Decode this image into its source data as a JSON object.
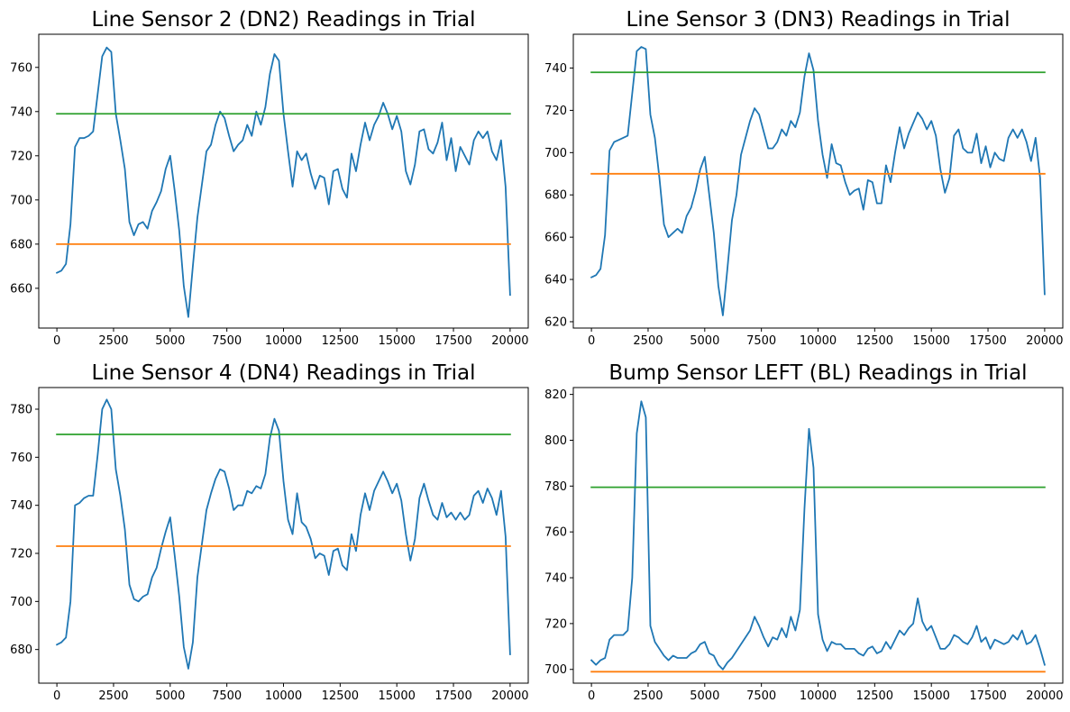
{
  "chart_data": [
    {
      "type": "line",
      "title": "Line Sensor 2 (DN2) Readings in Trial",
      "xlim": [
        -800,
        20800
      ],
      "ylim": [
        642,
        775
      ],
      "xticks": [
        0,
        2500,
        5000,
        7500,
        10000,
        12500,
        15000,
        17500,
        20000
      ],
      "yticks": [
        660,
        680,
        700,
        720,
        740,
        760
      ],
      "series": [
        {
          "color": "#1f77b4",
          "x": [
            0,
            200,
            400,
            600,
            800,
            1000,
            1200,
            1400,
            1600,
            1800,
            2000,
            2200,
            2400,
            2600,
            2800,
            3000,
            3200,
            3400,
            3600,
            3800,
            4000,
            4200,
            4400,
            4600,
            4800,
            5000,
            5200,
            5400,
            5600,
            5800,
            6000,
            6200,
            6400,
            6600,
            6800,
            7000,
            7200,
            7400,
            7600,
            7800,
            8000,
            8200,
            8400,
            8600,
            8800,
            9000,
            9200,
            9400,
            9600,
            9800,
            10000,
            10200,
            10400,
            10600,
            10800,
            11000,
            11200,
            11400,
            11600,
            11800,
            12000,
            12200,
            12400,
            12600,
            12800,
            13000,
            13200,
            13400,
            13600,
            13800,
            14000,
            14200,
            14400,
            14600,
            14800,
            15000,
            15200,
            15400,
            15600,
            15800,
            16000,
            16200,
            16400,
            16600,
            16800,
            17000,
            17200,
            17400,
            17600,
            17800,
            18000,
            18200,
            18400,
            18600,
            18800,
            19000,
            19200,
            19400,
            19600,
            19800,
            20000
          ],
          "y": [
            667,
            668,
            671,
            689,
            724,
            728,
            728,
            729,
            731,
            748,
            765,
            769,
            767,
            739,
            727,
            714,
            690,
            684,
            689,
            690,
            687,
            695,
            699,
            704,
            714,
            720,
            704,
            686,
            661,
            647,
            670,
            692,
            707,
            722,
            725,
            734,
            740,
            737,
            729,
            722,
            725,
            727,
            734,
            729,
            740,
            734,
            742,
            757,
            766,
            763,
            739,
            722,
            706,
            722,
            718,
            721,
            712,
            705,
            711,
            710,
            698,
            713,
            714,
            705,
            701,
            721,
            713,
            725,
            735,
            727,
            734,
            738,
            744,
            739,
            732,
            738,
            731,
            713,
            707,
            716,
            731,
            732,
            723,
            721,
            726,
            735,
            718,
            728,
            713,
            724,
            720,
            716,
            727,
            731,
            728,
            731,
            722,
            718,
            727,
            706,
            657
          ]
        },
        {
          "color": "#ff7f0e",
          "x": [
            0,
            20000
          ],
          "y": [
            680,
            680
          ]
        },
        {
          "color": "#2ca02c",
          "x": [
            0,
            20000
          ],
          "y": [
            739,
            739
          ]
        }
      ]
    },
    {
      "type": "line",
      "title": "Line Sensor 3 (DN3) Readings in Trial",
      "xlim": [
        -800,
        20800
      ],
      "ylim": [
        617,
        756
      ],
      "xticks": [
        0,
        2500,
        5000,
        7500,
        10000,
        12500,
        15000,
        17500,
        20000
      ],
      "yticks": [
        620,
        640,
        660,
        680,
        700,
        720,
        740
      ],
      "series": [
        {
          "color": "#1f77b4",
          "x": [
            0,
            200,
            400,
            600,
            800,
            1000,
            1200,
            1400,
            1600,
            1800,
            2000,
            2200,
            2400,
            2600,
            2800,
            3000,
            3200,
            3400,
            3600,
            3800,
            4000,
            4200,
            4400,
            4600,
            4800,
            5000,
            5200,
            5400,
            5600,
            5800,
            6000,
            6200,
            6400,
            6600,
            6800,
            7000,
            7200,
            7400,
            7600,
            7800,
            8000,
            8200,
            8400,
            8600,
            8800,
            9000,
            9200,
            9400,
            9600,
            9800,
            10000,
            10200,
            10400,
            10600,
            10800,
            11000,
            11200,
            11400,
            11600,
            11800,
            12000,
            12200,
            12400,
            12600,
            12800,
            13000,
            13200,
            13400,
            13600,
            13800,
            14000,
            14200,
            14400,
            14600,
            14800,
            15000,
            15200,
            15400,
            15600,
            15800,
            16000,
            16200,
            16400,
            16600,
            16800,
            17000,
            17200,
            17400,
            17600,
            17800,
            18000,
            18200,
            18400,
            18600,
            18800,
            19000,
            19200,
            19400,
            19600,
            19800,
            20000
          ],
          "y": [
            641,
            642,
            645,
            661,
            701,
            705,
            706,
            707,
            708,
            728,
            748,
            750,
            749,
            718,
            707,
            688,
            666,
            660,
            662,
            664,
            662,
            670,
            674,
            682,
            692,
            698,
            680,
            662,
            637,
            623,
            645,
            668,
            680,
            699,
            707,
            715,
            721,
            718,
            710,
            702,
            702,
            705,
            711,
            708,
            715,
            712,
            719,
            736,
            747,
            739,
            715,
            699,
            688,
            704,
            695,
            694,
            686,
            680,
            682,
            683,
            673,
            687,
            686,
            676,
            676,
            694,
            686,
            700,
            712,
            702,
            709,
            714,
            719,
            716,
            711,
            715,
            708,
            692,
            681,
            688,
            708,
            711,
            702,
            700,
            700,
            709,
            695,
            703,
            693,
            700,
            697,
            696,
            707,
            711,
            707,
            711,
            705,
            696,
            707,
            688,
            633
          ]
        },
        {
          "color": "#ff7f0e",
          "x": [
            0,
            20000
          ],
          "y": [
            690,
            690
          ]
        },
        {
          "color": "#2ca02c",
          "x": [
            0,
            20000
          ],
          "y": [
            738,
            738
          ]
        }
      ]
    },
    {
      "type": "line",
      "title": "Line Sensor 4 (DN4) Readings in Trial",
      "xlim": [
        -800,
        20800
      ],
      "ylim": [
        666,
        789
      ],
      "xticks": [
        0,
        2500,
        5000,
        7500,
        10000,
        12500,
        15000,
        17500,
        20000
      ],
      "yticks": [
        680,
        700,
        720,
        740,
        760,
        780
      ],
      "series": [
        {
          "color": "#1f77b4",
          "x": [
            0,
            200,
            400,
            600,
            800,
            1000,
            1200,
            1400,
            1600,
            1800,
            2000,
            2200,
            2400,
            2600,
            2800,
            3000,
            3200,
            3400,
            3600,
            3800,
            4000,
            4200,
            4400,
            4600,
            4800,
            5000,
            5200,
            5400,
            5600,
            5800,
            6000,
            6200,
            6400,
            6600,
            6800,
            7000,
            7200,
            7400,
            7600,
            7800,
            8000,
            8200,
            8400,
            8600,
            8800,
            9000,
            9200,
            9400,
            9600,
            9800,
            10000,
            10200,
            10400,
            10600,
            10800,
            11000,
            11200,
            11400,
            11600,
            11800,
            12000,
            12200,
            12400,
            12600,
            12800,
            13000,
            13200,
            13400,
            13600,
            13800,
            14000,
            14200,
            14400,
            14600,
            14800,
            15000,
            15200,
            15400,
            15600,
            15800,
            16000,
            16200,
            16400,
            16600,
            16800,
            17000,
            17200,
            17400,
            17600,
            17800,
            18000,
            18200,
            18400,
            18600,
            18800,
            19000,
            19200,
            19400,
            19600,
            19800,
            20000
          ],
          "y": [
            682,
            683,
            685,
            700,
            740,
            741,
            743,
            744,
            744,
            761,
            780,
            784,
            780,
            755,
            744,
            730,
            707,
            701,
            700,
            702,
            703,
            710,
            714,
            722,
            729,
            735,
            719,
            702,
            681,
            672,
            683,
            710,
            724,
            738,
            745,
            751,
            755,
            754,
            747,
            738,
            740,
            740,
            746,
            745,
            748,
            747,
            753,
            768,
            776,
            771,
            750,
            734,
            728,
            745,
            733,
            731,
            726,
            718,
            720,
            719,
            711,
            721,
            722,
            715,
            713,
            728,
            721,
            736,
            745,
            738,
            746,
            750,
            754,
            750,
            745,
            749,
            742,
            728,
            717,
            726,
            743,
            749,
            742,
            736,
            734,
            741,
            735,
            737,
            734,
            737,
            734,
            736,
            744,
            746,
            741,
            747,
            743,
            736,
            746,
            727,
            678
          ]
        },
        {
          "color": "#ff7f0e",
          "x": [
            0,
            20000
          ],
          "y": [
            723,
            723
          ]
        },
        {
          "color": "#2ca02c",
          "x": [
            0,
            20000
          ],
          "y": [
            769.5,
            769.5
          ]
        }
      ]
    },
    {
      "type": "line",
      "title": "Bump Sensor LEFT (BL) Readings in Trial",
      "xlim": [
        -800,
        20800
      ],
      "ylim": [
        694,
        823
      ],
      "xticks": [
        0,
        2500,
        5000,
        7500,
        10000,
        12500,
        15000,
        17500,
        20000
      ],
      "yticks": [
        700,
        720,
        740,
        760,
        780,
        800,
        820
      ],
      "series": [
        {
          "color": "#1f77b4",
          "x": [
            0,
            200,
            400,
            600,
            800,
            1000,
            1200,
            1400,
            1600,
            1800,
            2000,
            2200,
            2400,
            2600,
            2800,
            3000,
            3200,
            3400,
            3600,
            3800,
            4000,
            4200,
            4400,
            4600,
            4800,
            5000,
            5200,
            5400,
            5600,
            5800,
            6000,
            6200,
            6400,
            6600,
            6800,
            7000,
            7200,
            7400,
            7600,
            7800,
            8000,
            8200,
            8400,
            8600,
            8800,
            9000,
            9200,
            9400,
            9600,
            9800,
            10000,
            10200,
            10400,
            10600,
            10800,
            11000,
            11200,
            11400,
            11600,
            11800,
            12000,
            12200,
            12400,
            12600,
            12800,
            13000,
            13200,
            13400,
            13600,
            13800,
            14000,
            14200,
            14400,
            14600,
            14800,
            15000,
            15200,
            15400,
            15600,
            15800,
            16000,
            16200,
            16400,
            16600,
            16800,
            17000,
            17200,
            17400,
            17600,
            17800,
            18000,
            18200,
            18400,
            18600,
            18800,
            19000,
            19200,
            19400,
            19600,
            19800,
            20000
          ],
          "y": [
            704,
            702,
            704,
            705,
            713,
            715,
            715,
            715,
            717,
            740,
            803,
            817,
            810,
            719,
            712,
            709,
            706,
            704,
            706,
            705,
            705,
            705,
            707,
            708,
            711,
            712,
            707,
            706,
            702,
            700,
            703,
            705,
            708,
            711,
            714,
            717,
            723,
            719,
            714,
            710,
            714,
            713,
            718,
            714,
            723,
            717,
            726,
            770,
            805,
            788,
            724,
            713,
            708,
            712,
            711,
            711,
            709,
            709,
            709,
            707,
            706,
            709,
            710,
            707,
            708,
            712,
            709,
            713,
            717,
            715,
            718,
            720,
            731,
            721,
            717,
            719,
            714,
            709,
            709,
            711,
            715,
            714,
            712,
            711,
            714,
            719,
            712,
            714,
            709,
            713,
            712,
            711,
            712,
            715,
            713,
            717,
            711,
            712,
            715,
            709,
            702
          ]
        },
        {
          "color": "#ff7f0e",
          "x": [
            0,
            20000
          ],
          "y": [
            699,
            699
          ]
        },
        {
          "color": "#2ca02c",
          "x": [
            0,
            20000
          ],
          "y": [
            779.5,
            779.5
          ]
        }
      ]
    }
  ]
}
